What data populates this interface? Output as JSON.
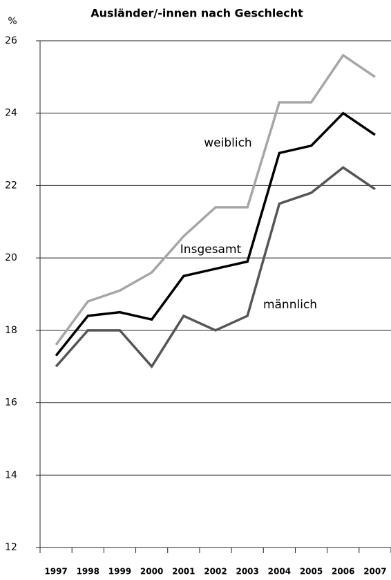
{
  "chart_data": {
    "type": "line",
    "title": "Ausländer/-innen nach Geschlecht",
    "y_axis_label": "%",
    "categories": [
      "1997",
      "1998",
      "1999",
      "2000",
      "2001",
      "2002",
      "2003",
      "2004",
      "2005",
      "2006",
      "2007"
    ],
    "series": [
      {
        "name": "weiblich",
        "color": "#a6a6a6",
        "values": [
          17.6,
          18.8,
          19.1,
          19.6,
          20.6,
          21.4,
          21.4,
          24.3,
          24.3,
          25.6,
          25.0
        ]
      },
      {
        "name": "Insgesamt",
        "color": "#000000",
        "values": [
          17.3,
          18.4,
          18.5,
          18.3,
          19.5,
          19.7,
          19.9,
          22.9,
          23.1,
          24.0,
          23.4
        ]
      },
      {
        "name": "männlich",
        "color": "#555555",
        "values": [
          17.0,
          18.0,
          18.0,
          17.0,
          18.4,
          18.0,
          18.4,
          21.5,
          21.8,
          22.5,
          21.9
        ]
      }
    ],
    "ylim": [
      12,
      26
    ],
    "yticks": [
      12,
      14,
      16,
      18,
      20,
      22,
      24,
      26
    ],
    "grid": true
  }
}
